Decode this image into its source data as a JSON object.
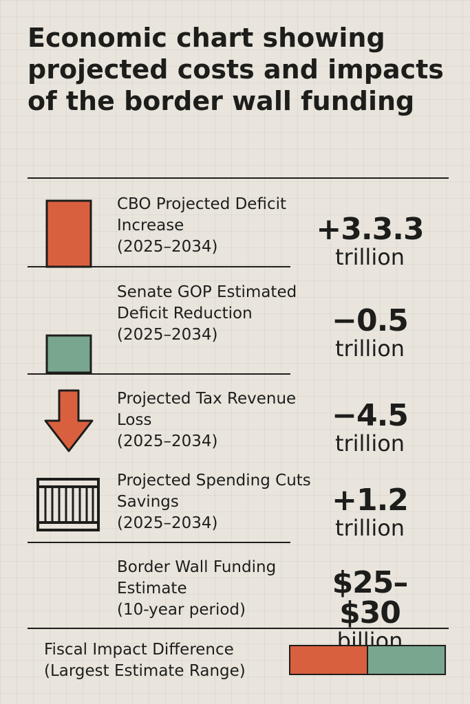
{
  "title": "Economic chart showing projected costs and impacts of the border wall funding",
  "chart_data": {
    "type": "table",
    "title": "Economic chart showing projected costs and impacts of the border wall funding",
    "rows": [
      {
        "label": "CBO Projected Deficit Increase",
        "period": "(2025–2034)",
        "value_text": "+3.3.3",
        "unit": "trillion",
        "icon": "bar-tall-icon",
        "color": "#d9603f"
      },
      {
        "label": "Senate GOP Estimated Deficit Reduction",
        "period": "(2025–2034)",
        "value_text": "−0.5",
        "unit": "trillion",
        "icon": "bar-short-icon",
        "color": "#78a68e"
      },
      {
        "label": "Projected Tax Revenue Loss",
        "period": "(2025–2034)",
        "value_text": "−4.5",
        "unit": "trillion",
        "icon": "down-arrow-icon",
        "color": "#d9603f"
      },
      {
        "label": "Projected Spending Cuts Savings",
        "period": "(2025–2034)",
        "value_text": "+1.2",
        "unit": "trillion",
        "icon": "fence-icon",
        "color": "#1d1d1b"
      },
      {
        "label": "Border Wall Funding Estimate",
        "period": "(10-year period)",
        "value_text": "$25–$30",
        "unit": "billion",
        "icon": "",
        "color": ""
      }
    ],
    "legend": {
      "label": "Fiscal Impact Difference",
      "sublabel": "(Largest Estimate Range)",
      "segments": [
        {
          "color": "#d9603f",
          "share": 0.5
        },
        {
          "color": "#78a68e",
          "share": 0.5
        }
      ]
    }
  }
}
